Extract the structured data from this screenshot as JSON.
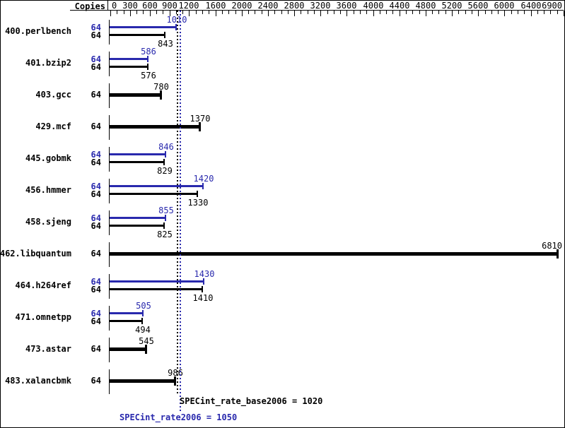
{
  "header": {
    "copies_label": "Copies"
  },
  "colors": {
    "peak": "#2929ad",
    "base": "#000000",
    "background": "#ffffff"
  },
  "axis": {
    "min": 0,
    "max": 6900,
    "major_ticks": [
      0,
      300,
      600,
      900,
      1200,
      1600,
      2000,
      2400,
      2800,
      3200,
      3600,
      4000,
      4400,
      4800,
      5200,
      5600,
      6000,
      6400,
      6900
    ],
    "minor_tick_step": 100
  },
  "benchmarks": [
    {
      "name": "400.perlbench",
      "peak_copies": "64",
      "base_copies": "64",
      "peak": 1010,
      "base": 843
    },
    {
      "name": "401.bzip2",
      "peak_copies": "64",
      "base_copies": "64",
      "peak": 586,
      "base": 576
    },
    {
      "name": "403.gcc",
      "peak_copies": null,
      "base_copies": "64",
      "peak": null,
      "base": 780
    },
    {
      "name": "429.mcf",
      "peak_copies": null,
      "base_copies": "64",
      "peak": null,
      "base": 1370
    },
    {
      "name": "445.gobmk",
      "peak_copies": "64",
      "base_copies": "64",
      "peak": 846,
      "base": 829
    },
    {
      "name": "456.hmmer",
      "peak_copies": "64",
      "base_copies": "64",
      "peak": 1420,
      "base": 1330
    },
    {
      "name": "458.sjeng",
      "peak_copies": "64",
      "base_copies": "64",
      "peak": 855,
      "base": 825
    },
    {
      "name": "462.libquantum",
      "peak_copies": null,
      "base_copies": "64",
      "peak": null,
      "base": 6810
    },
    {
      "name": "464.h264ref",
      "peak_copies": "64",
      "base_copies": "64",
      "peak": 1430,
      "base": 1410
    },
    {
      "name": "471.omnetpp",
      "peak_copies": "64",
      "base_copies": "64",
      "peak": 505,
      "base": 494
    },
    {
      "name": "473.astar",
      "peak_copies": null,
      "base_copies": "64",
      "peak": null,
      "base": 545
    },
    {
      "name": "483.xalancbmk",
      "peak_copies": null,
      "base_copies": "64",
      "peak": null,
      "base": 986
    }
  ],
  "summary": {
    "base": {
      "text": "SPECint_rate_base2006 = 1020",
      "value": 1020
    },
    "peak": {
      "text": "SPECint_rate2006 = 1050",
      "value": 1050
    }
  },
  "chart_data": {
    "type": "bar",
    "orientation": "horizontal",
    "title": "",
    "categories": [
      "400.perlbench",
      "401.bzip2",
      "403.gcc",
      "429.mcf",
      "445.gobmk",
      "456.hmmer",
      "458.sjeng",
      "462.libquantum",
      "464.h264ref",
      "471.omnetpp",
      "473.astar",
      "483.xalancbmk"
    ],
    "copies": [
      64,
      64,
      64,
      64,
      64,
      64,
      64,
      64,
      64,
      64,
      64,
      64
    ],
    "series": [
      {
        "name": "SPECint_rate2006 (peak)",
        "color": "#2929ad",
        "values": [
          1010,
          586,
          null,
          null,
          846,
          1420,
          855,
          null,
          1430,
          505,
          null,
          null
        ]
      },
      {
        "name": "SPECint_rate_base2006 (base)",
        "color": "#000000",
        "values": [
          843,
          576,
          780,
          1370,
          829,
          1330,
          825,
          6810,
          1410,
          494,
          545,
          986
        ]
      }
    ],
    "xlim": [
      0,
      6900
    ],
    "x_major_ticks": [
      0,
      300,
      600,
      900,
      1200,
      1600,
      2000,
      2400,
      2800,
      3200,
      3600,
      4000,
      4400,
      4800,
      5200,
      5600,
      6000,
      6400,
      6900
    ],
    "x_minor_tick_step": 100,
    "grid": false,
    "legend_position": "none",
    "reference_lines": [
      {
        "label": "SPECint_rate_base2006",
        "value": 1020,
        "style": "dotted",
        "color": "#000000"
      },
      {
        "label": "SPECint_rate2006",
        "value": 1050,
        "style": "dotted",
        "color": "#2929ad"
      }
    ]
  }
}
